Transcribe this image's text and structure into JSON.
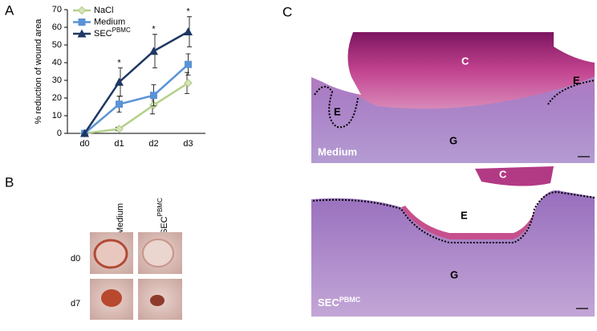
{
  "panel_labels": [
    "A",
    "B",
    "C"
  ],
  "chart_data": {
    "type": "line",
    "y_label": "% reduction of wound area",
    "categories": [
      "d0",
      "d1",
      "d2",
      "d3"
    ],
    "series": [
      {
        "name": "NaCl",
        "color": "#b5cf8a",
        "marker": "diamond",
        "values": [
          0,
          2.5,
          16,
          28.5
        ],
        "errors": [
          null,
          1,
          5,
          6
        ]
      },
      {
        "name": "Medium",
        "color": "#5a93d6",
        "marker": "square",
        "values": [
          0,
          16.5,
          21.5,
          39
        ],
        "errors": [
          null,
          4.5,
          6,
          6
        ]
      },
      {
        "name": "SEC",
        "name_sup": "PBMC",
        "color": "#1f3864",
        "marker": "triangle",
        "values": [
          0,
          29,
          46.5,
          57.5
        ],
        "errors": [
          null,
          8,
          9.5,
          8.5
        ]
      }
    ],
    "annotations": [
      {
        "category": "d1",
        "text": "*"
      },
      {
        "category": "d2",
        "text": "*"
      },
      {
        "category": "d3",
        "text": "*"
      }
    ],
    "ylim": [
      0,
      70
    ],
    "yticks": [
      0,
      10,
      20,
      30,
      40,
      50,
      60,
      70
    ],
    "legend": "upper left"
  },
  "photos": {
    "columns": [
      {
        "text": "Medium"
      },
      {
        "text": "SEC",
        "sup": "PBMC"
      }
    ],
    "rows": [
      "d0",
      "d7"
    ]
  },
  "histology": {
    "top": {
      "label": "Medium",
      "regions": [
        "C",
        "E",
        "G",
        "E"
      ]
    },
    "bottom": {
      "label": "SEC",
      "label_sup": "PBMC",
      "regions": [
        "C",
        "E",
        "G"
      ]
    }
  }
}
